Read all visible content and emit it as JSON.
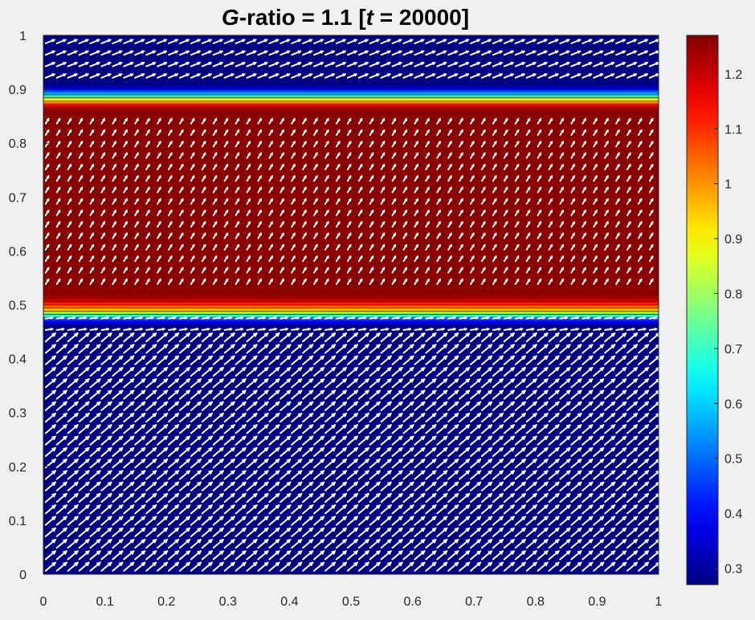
{
  "chart_data": {
    "type": "heatmap",
    "overlay": "quiver",
    "title": {
      "symbol": "G",
      "middle": "-ratio = 1.1 [",
      "time_symbol": "t",
      "end": " = 20000]"
    },
    "xlabel": "",
    "ylabel": "",
    "xlim": [
      0,
      1
    ],
    "ylim": [
      0,
      1
    ],
    "x_ticks": [
      "0",
      "0.1",
      "0.2",
      "0.3",
      "0.4",
      "0.5",
      "0.6",
      "0.7",
      "0.8",
      "0.9",
      "1"
    ],
    "y_ticks": [
      "0",
      "0.1",
      "0.2",
      "0.3",
      "0.4",
      "0.5",
      "0.6",
      "0.7",
      "0.8",
      "0.9",
      "1"
    ],
    "colormap": "jet",
    "colorbar": {
      "range": [
        0.27,
        1.27
      ],
      "ticks": [
        "0.3",
        "0.4",
        "0.5",
        "0.6",
        "0.7",
        "0.8",
        "0.9",
        "1",
        "1.1",
        "1.2"
      ],
      "placement": "right"
    },
    "field_profile_y": {
      "y": [
        0.0,
        0.46,
        0.47,
        0.48,
        0.49,
        0.5,
        0.51,
        0.52,
        0.86,
        0.87,
        0.88,
        0.89,
        0.9,
        0.91,
        1.0
      ],
      "value": [
        0.27,
        0.27,
        0.4,
        0.7,
        0.95,
        1.1,
        1.22,
        1.26,
        1.26,
        1.15,
        0.9,
        0.6,
        0.35,
        0.27,
        0.27
      ]
    },
    "contour_lines_y": [
      0.476,
      0.482,
      0.488,
      0.494,
      0.5,
      0.506,
      0.866,
      0.872,
      0.878,
      0.884,
      0.89
    ],
    "vector_field": {
      "grid_columns": 55,
      "grid_rows": 47,
      "arrow_color": "#ffffff",
      "bands": [
        {
          "y_from": 0.0,
          "y_to": 0.45,
          "angle_deg": 40,
          "magnitude": 1.0
        },
        {
          "y_from": 0.45,
          "y_to": 0.48,
          "angle_deg": 8,
          "magnitude": 0.55
        },
        {
          "y_from": 0.52,
          "y_to": 0.85,
          "angle_deg": 58,
          "magnitude": 0.45
        },
        {
          "y_from": 0.9,
          "y_to": 1.0,
          "angle_deg": 22,
          "magnitude": 0.75
        }
      ]
    }
  }
}
